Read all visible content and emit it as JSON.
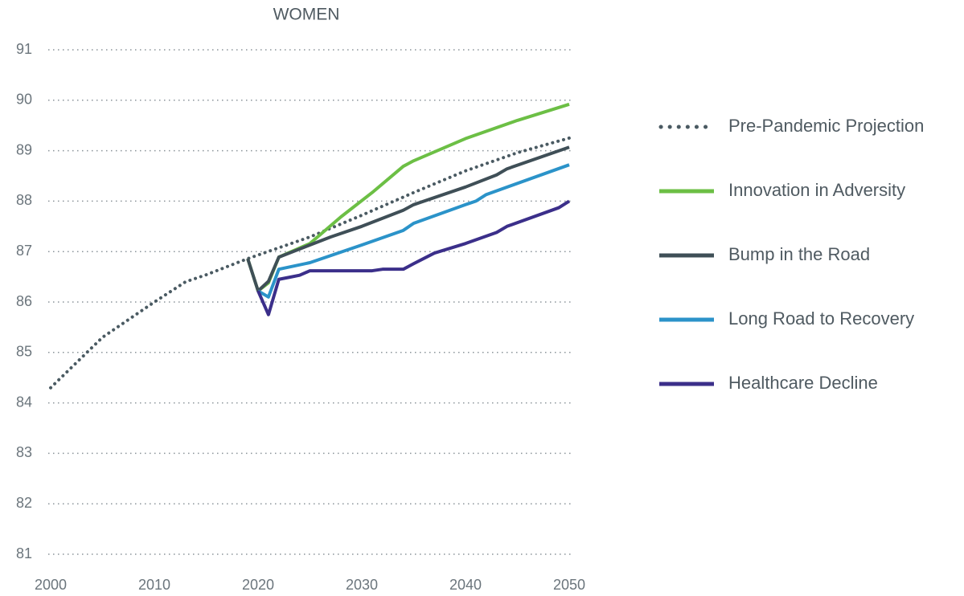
{
  "chart_data": {
    "type": "line",
    "title": "WOMEN",
    "xlim": [
      2000,
      2050
    ],
    "xticks": [
      2000,
      2010,
      2020,
      2030,
      2040,
      2050
    ],
    "ylim": [
      81,
      91
    ],
    "yticks": [
      81,
      82,
      83,
      84,
      85,
      86,
      87,
      88,
      89,
      90,
      91
    ],
    "grid": true,
    "legend": "right",
    "series": [
      {
        "name": "Pre-Pandemic Projection",
        "color": "#4a5a62",
        "style": "dotted",
        "x": [
          2000,
          2005,
          2010,
          2013,
          2015,
          2019,
          2025,
          2030,
          2035,
          2040,
          2045,
          2050
        ],
        "values": [
          84.3,
          85.3,
          86.0,
          86.4,
          86.54,
          86.86,
          87.29,
          87.72,
          88.17,
          88.6,
          88.96,
          89.25
        ]
      },
      {
        "name": "Innovation in Adversity",
        "color": "#6cbf45",
        "style": "solid",
        "x": [
          2019,
          2020,
          2021,
          2022,
          2025,
          2028,
          2031,
          2034,
          2035,
          2040,
          2045,
          2050
        ],
        "values": [
          86.86,
          86.22,
          86.38,
          86.89,
          87.16,
          87.69,
          88.17,
          88.69,
          88.8,
          89.24,
          89.6,
          89.92
        ]
      },
      {
        "name": "Bump in the Road",
        "color": "#3f4f57",
        "style": "solid",
        "x": [
          2019,
          2020,
          2021,
          2022,
          2025,
          2027,
          2030,
          2034,
          2035,
          2040,
          2043,
          2044,
          2050
        ],
        "values": [
          86.86,
          86.22,
          86.41,
          86.89,
          87.13,
          87.29,
          87.5,
          87.82,
          87.93,
          88.28,
          88.52,
          88.64,
          89.07
        ]
      },
      {
        "name": "Long Road to Recovery",
        "color": "#2b93c9",
        "style": "solid",
        "x": [
          2020,
          2021,
          2022,
          2025,
          2030,
          2034,
          2035,
          2040,
          2041,
          2042,
          2050
        ],
        "values": [
          86.22,
          86.1,
          86.65,
          86.78,
          87.13,
          87.42,
          87.56,
          87.93,
          88.0,
          88.13,
          88.72
        ]
      },
      {
        "name": "Healthcare Decline",
        "color": "#3b2f8a",
        "style": "solid",
        "x": [
          2020,
          2021,
          2022,
          2023,
          2024,
          2025,
          2031,
          2032,
          2034,
          2035,
          2037,
          2040,
          2043,
          2044,
          2049,
          2050
        ],
        "values": [
          86.22,
          85.75,
          86.45,
          86.49,
          86.53,
          86.62,
          86.62,
          86.65,
          86.65,
          86.76,
          86.97,
          87.16,
          87.38,
          87.5,
          87.87,
          88.0
        ]
      }
    ]
  }
}
